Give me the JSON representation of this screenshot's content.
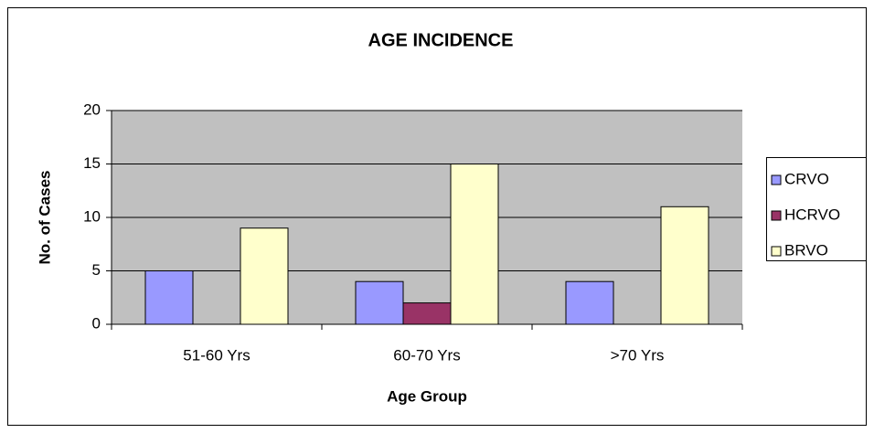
{
  "chart_data": {
    "type": "bar",
    "title": "AGE INCIDENCE",
    "x_label": "Age Group",
    "y_label": "No. of Cases",
    "categories": [
      "51-60 Yrs",
      "60-70 Yrs",
      ">70 Yrs"
    ],
    "series": [
      {
        "name": "CRVO",
        "color": "#9999ff",
        "values": [
          5,
          4,
          4
        ]
      },
      {
        "name": "HCRVO",
        "color": "#993366",
        "values": [
          0,
          2,
          0
        ]
      },
      {
        "name": "BRVO",
        "color": "#ffffcc",
        "values": [
          9,
          15,
          11
        ]
      }
    ],
    "ylim": [
      0,
      20
    ],
    "yticks": [
      0,
      5,
      10,
      15,
      20
    ],
    "grid": true,
    "legend": "right"
  }
}
